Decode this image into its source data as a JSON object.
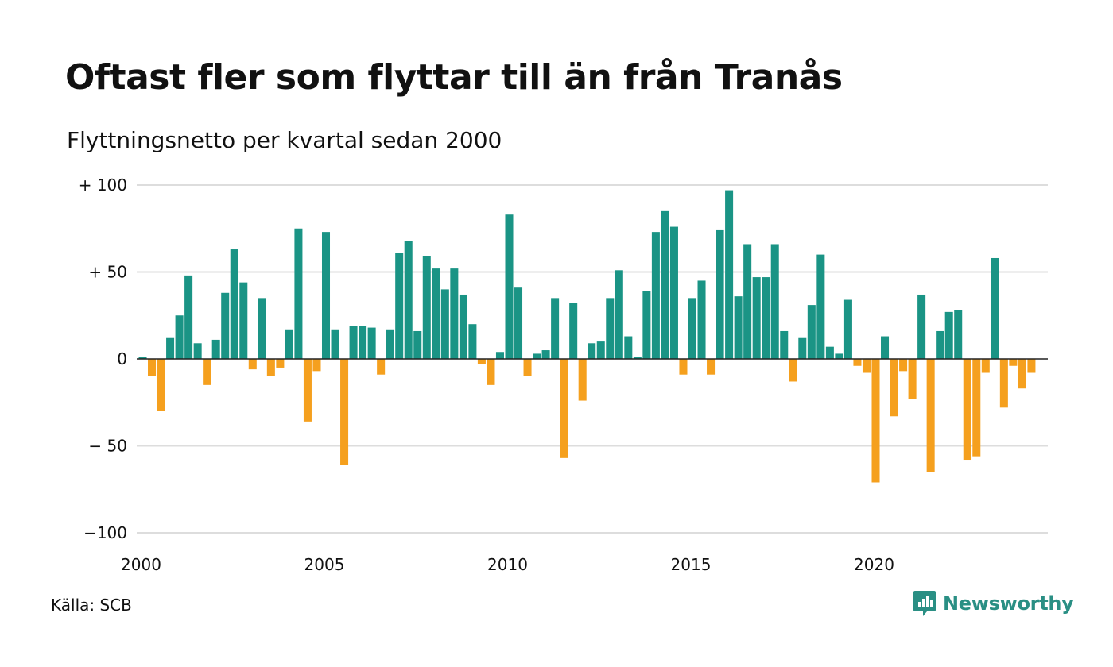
{
  "title": "Oftast fler som flyttar till än från Tranås",
  "subtitle": "Flyttningsnetto per kvartal sedan 2000",
  "source": "Källa: SCB",
  "brand": {
    "name": "Newsworthy",
    "icon": "newsworthy-logo-icon",
    "color": "#2a8f84"
  },
  "colors": {
    "positive": "#1a9485",
    "negative": "#f5a01e",
    "grid": "#dddddd",
    "zero_line": "#222222"
  },
  "chart_data": {
    "type": "bar",
    "title": "Oftast fler som flyttar till än från Tranås",
    "subtitle": "Flyttningsnetto per kvartal sedan 2000",
    "xlabel": "",
    "ylabel": "",
    "ylim": [
      -100,
      100
    ],
    "y_ticks": [
      {
        "value": 100,
        "label": "+ 100"
      },
      {
        "value": 50,
        "label": "+  50"
      },
      {
        "value": 0,
        "label": "0"
      },
      {
        "value": -50,
        "label": "− 50"
      },
      {
        "value": -100,
        "label": "−100"
      }
    ],
    "x_ticks": [
      {
        "value": 2000,
        "label": "2000"
      },
      {
        "value": 2005,
        "label": "2005"
      },
      {
        "value": 2010,
        "label": "2010"
      },
      {
        "value": 2015,
        "label": "2015"
      },
      {
        "value": 2020,
        "label": "2020"
      }
    ],
    "x_range": [
      2000,
      2024.75
    ],
    "grid": true,
    "series": [
      {
        "start": "2000 Q1",
        "frequency": "quarterly",
        "values": [
          1,
          -10,
          -30,
          12,
          25,
          48,
          9,
          -15,
          11,
          38,
          63,
          44,
          -6,
          35,
          -10,
          -5,
          17,
          75,
          -36,
          -7,
          73,
          17,
          -61,
          19,
          19,
          18,
          -9,
          17,
          61,
          68,
          16,
          59,
          52,
          40,
          52,
          37,
          20,
          -3,
          -15,
          4,
          83,
          41,
          -10,
          3,
          5,
          35,
          -57,
          32,
          -24,
          9,
          10,
          35,
          51,
          13,
          1,
          39,
          73,
          85,
          76,
          -9,
          35,
          45,
          -9,
          74,
          97,
          36,
          66,
          47,
          47,
          66,
          16,
          -13,
          12,
          31,
          60,
          7,
          3,
          34,
          -4,
          -8,
          -71,
          13,
          -33,
          -7,
          -23,
          37,
          -65,
          16,
          27,
          28,
          -58,
          -56,
          -8,
          58,
          -28,
          -4,
          -17,
          -8
        ]
      }
    ]
  }
}
